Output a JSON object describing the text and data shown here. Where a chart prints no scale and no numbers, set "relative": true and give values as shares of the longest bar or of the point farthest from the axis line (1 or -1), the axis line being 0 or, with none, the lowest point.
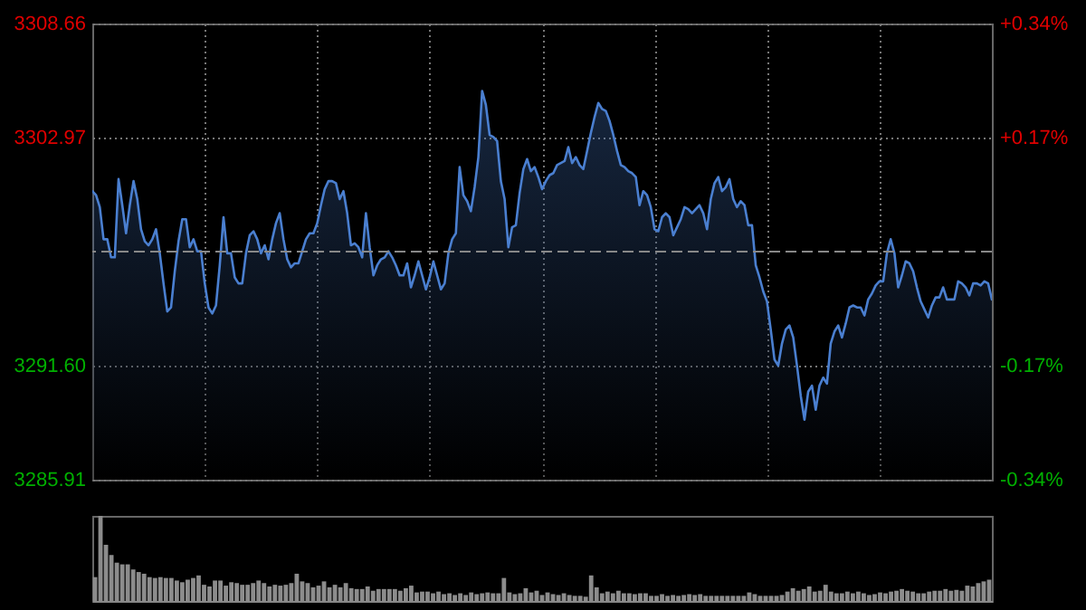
{
  "chart_data": [
    {
      "type": "area",
      "categories": [
        null,
        null,
        null,
        null,
        null,
        null,
        null,
        null,
        null,
        null,
        null,
        null,
        null,
        null,
        null,
        null,
        null,
        null,
        null,
        null,
        null,
        null,
        null,
        null,
        null,
        null,
        null,
        null,
        null,
        null,
        null,
        null,
        null,
        null,
        null,
        null,
        null,
        null,
        null,
        null,
        null,
        null,
        null,
        null,
        null,
        null,
        null,
        null,
        null,
        null,
        null,
        null,
        null,
        null,
        null,
        null,
        null,
        null,
        null,
        null,
        null,
        null,
        null,
        null,
        null,
        null,
        null,
        null,
        null,
        null,
        null,
        null,
        null,
        null,
        null,
        null,
        null,
        null,
        null,
        null,
        null,
        null,
        null,
        null,
        null,
        null,
        null,
        null,
        null,
        null,
        null,
        null,
        null,
        null,
        null,
        null,
        null,
        null,
        null,
        null,
        null,
        null,
        null,
        null,
        null,
        null,
        null,
        null,
        null,
        null,
        null,
        null,
        null,
        null,
        null,
        null,
        null,
        null,
        null,
        null,
        null,
        null,
        null,
        null,
        null,
        null,
        null,
        null,
        null,
        null,
        null,
        null,
        null,
        null,
        null,
        null,
        null,
        null,
        null,
        null,
        null,
        null,
        null,
        null,
        null,
        null,
        null,
        null,
        null,
        null,
        null,
        null,
        null,
        null,
        null,
        null,
        null,
        null,
        null,
        null,
        null,
        null,
        null,
        null,
        null,
        null,
        null,
        null,
        null,
        null,
        null,
        null,
        null,
        null,
        null,
        null,
        null,
        null,
        null,
        null,
        null,
        null,
        null,
        null,
        null,
        null,
        null,
        null,
        null,
        null,
        null,
        null,
        null,
        null,
        null,
        null,
        null,
        null,
        null,
        null,
        null,
        null,
        null,
        null,
        null,
        null,
        null,
        null,
        null,
        null,
        null,
        null,
        null,
        null,
        null,
        null,
        null,
        null,
        null,
        null,
        null,
        null,
        null,
        null,
        null,
        null,
        null,
        null,
        null,
        null,
        null,
        null,
        null,
        null,
        null,
        null,
        null,
        null,
        null,
        null,
        null
      ],
      "series": [
        {
          "color": "#4a7fd0",
          "values": [
            3300.3,
            3300.1,
            3299.5,
            3297.9,
            3297.9,
            3297.0,
            3297.0,
            3300.9,
            3299.6,
            3298.2,
            3299.6,
            3300.8,
            3299.9,
            3298.4,
            3297.8,
            3297.6,
            3297.9,
            3298.4,
            3297.2,
            3295.7,
            3294.3,
            3294.5,
            3296.3,
            3297.8,
            3298.9,
            3298.9,
            3297.5,
            3297.9,
            3297.3,
            3297.3,
            3295.7,
            3294.5,
            3294.2,
            3294.6,
            3296.6,
            3299.0,
            3297.2,
            3297.2,
            3296.0,
            3295.7,
            3295.7,
            3297.2,
            3298.1,
            3298.3,
            3297.9,
            3297.2,
            3297.6,
            3296.9,
            3297.9,
            3298.7,
            3299.2,
            3297.9,
            3296.9,
            3296.5,
            3296.7,
            3296.7,
            3297.3,
            3297.9,
            3298.2,
            3298.2,
            3298.7,
            3299.6,
            3300.4,
            3300.8,
            3300.8,
            3300.7,
            3299.9,
            3300.3,
            3299.2,
            3297.6,
            3297.7,
            3297.5,
            3297.0,
            3299.2,
            3297.5,
            3296.1,
            3296.6,
            3296.9,
            3297.0,
            3297.3,
            3297.0,
            3296.6,
            3296.1,
            3296.1,
            3296.7,
            3295.5,
            3296.1,
            3296.8,
            3296.1,
            3295.4,
            3296.0,
            3296.8,
            3296.1,
            3295.4,
            3295.7,
            3297.2,
            3297.9,
            3298.2,
            3301.5,
            3300.1,
            3299.8,
            3299.3,
            3300.5,
            3302.0,
            3305.3,
            3304.6,
            3303.1,
            3303.0,
            3302.8,
            3300.8,
            3299.9,
            3297.5,
            3298.5,
            3298.6,
            3300.2,
            3301.4,
            3301.9,
            3301.3,
            3301.5,
            3301.0,
            3300.4,
            3300.8,
            3301.1,
            3301.2,
            3301.6,
            3301.7,
            3301.8,
            3302.5,
            3301.7,
            3302.0,
            3301.6,
            3301.4,
            3302.3,
            3303.2,
            3304.0,
            3304.7,
            3304.4,
            3304.3,
            3303.8,
            3303.1,
            3302.3,
            3301.6,
            3301.5,
            3301.3,
            3301.2,
            3301.0,
            3299.6,
            3300.3,
            3300.1,
            3299.5,
            3298.4,
            3298.3,
            3299.0,
            3299.2,
            3299.0,
            3298.1,
            3298.5,
            3298.9,
            3299.5,
            3299.4,
            3299.2,
            3299.4,
            3299.6,
            3299.2,
            3298.4,
            3299.9,
            3300.7,
            3301.0,
            3300.3,
            3300.5,
            3300.9,
            3299.9,
            3299.5,
            3299.8,
            3299.6,
            3298.6,
            3298.6,
            3296.6,
            3296.0,
            3295.3,
            3294.8,
            3293.4,
            3291.9,
            3291.6,
            3292.7,
            3293.4,
            3293.6,
            3293.0,
            3291.6,
            3290.1,
            3288.9,
            3290.3,
            3290.6,
            3289.4,
            3290.6,
            3291.0,
            3290.7,
            3292.7,
            3293.3,
            3293.6,
            3293.0,
            3293.7,
            3294.5,
            3294.6,
            3294.5,
            3294.5,
            3294.1,
            3294.9,
            3295.2,
            3295.6,
            3295.8,
            3295.8,
            3297.2,
            3297.9,
            3297.2,
            3295.5,
            3296.1,
            3296.8,
            3296.7,
            3296.3,
            3295.5,
            3294.8,
            3294.4,
            3294.0,
            3294.6,
            3295.0,
            3295.0,
            3295.5,
            3294.9,
            3294.9,
            3294.9,
            3295.8,
            3295.7,
            3295.5,
            3295.1,
            3295.7,
            3295.7,
            3295.6,
            3295.8,
            3295.7,
            3294.9
          ]
        }
      ],
      "ylim": [
        3285.91,
        3308.66
      ],
      "yticks": [
        3285.91,
        {
          "value": 3291.6,
          "label": "3291.60"
        },
        3302.97,
        3308.66
      ],
      "y2lim": [
        -0.34,
        0.34
      ],
      "y2ticks": [
        {
          "value": -0.34,
          "label": "-0.34%"
        },
        {
          "value": -0.17,
          "label": "-0.17%"
        },
        {
          "value": 0.17,
          "label": "+0.17%"
        },
        {
          "value": 0.34,
          "label": "+0.34%"
        }
      ],
      "ref_lines": [
        {
          "axis": "y",
          "value": 3297.28,
          "color": "#888888",
          "line_style": "dashed"
        }
      ],
      "grid": true
    },
    {
      "type": "bar",
      "relative": true,
      "categories": [
        null,
        null,
        null,
        null,
        null,
        null,
        null,
        null,
        null,
        null,
        null,
        null,
        null,
        null,
        null,
        null,
        null,
        null,
        null,
        null,
        null,
        null,
        null,
        null,
        null,
        null,
        null,
        null,
        null,
        null,
        null,
        null,
        null,
        null,
        null,
        null,
        null,
        null,
        null,
        null,
        null,
        null,
        null,
        null,
        null,
        null,
        null,
        null,
        null,
        null,
        null,
        null,
        null,
        null,
        null,
        null,
        null,
        null,
        null,
        null,
        null,
        null,
        null,
        null,
        null,
        null,
        null,
        null,
        null,
        null,
        null,
        null,
        null,
        null,
        null,
        null,
        null,
        null,
        null,
        null,
        null,
        null,
        null,
        null,
        null,
        null,
        null,
        null,
        null,
        null,
        null,
        null,
        null,
        null,
        null,
        null,
        null,
        null,
        null,
        null,
        null,
        null,
        null,
        null,
        null,
        null,
        null,
        null,
        null,
        null,
        null,
        null,
        null,
        null,
        null,
        null,
        null,
        null,
        null,
        null,
        null,
        null,
        null,
        null,
        null,
        null,
        null,
        null,
        null,
        null,
        null,
        null,
        null,
        null,
        null,
        null,
        null,
        null,
        null,
        null,
        null,
        null,
        null,
        null,
        null,
        null,
        null,
        null,
        null,
        null,
        null,
        null,
        null,
        null,
        null,
        null,
        null,
        null,
        null,
        null,
        null,
        null,
        null,
        null,
        null
      ],
      "series": [
        {
          "color": "#8c8c8c",
          "values": [
            0.28,
            1.0,
            0.66,
            0.54,
            0.45,
            0.43,
            0.43,
            0.37,
            0.34,
            0.32,
            0.28,
            0.27,
            0.28,
            0.27,
            0.27,
            0.24,
            0.22,
            0.25,
            0.27,
            0.3,
            0.19,
            0.17,
            0.24,
            0.24,
            0.18,
            0.22,
            0.21,
            0.19,
            0.19,
            0.21,
            0.24,
            0.21,
            0.17,
            0.19,
            0.18,
            0.19,
            0.21,
            0.32,
            0.23,
            0.21,
            0.16,
            0.18,
            0.23,
            0.16,
            0.19,
            0.16,
            0.21,
            0.15,
            0.14,
            0.14,
            0.17,
            0.12,
            0.14,
            0.14,
            0.14,
            0.14,
            0.12,
            0.15,
            0.18,
            0.1,
            0.11,
            0.11,
            0.09,
            0.11,
            0.08,
            0.09,
            0.07,
            0.09,
            0.07,
            0.1,
            0.08,
            0.09,
            0.1,
            0.09,
            0.09,
            0.27,
            0.1,
            0.08,
            0.09,
            0.15,
            0.1,
            0.12,
            0.07,
            0.1,
            0.08,
            0.07,
            0.09,
            0.07,
            0.06,
            0.06,
            0.05,
            0.3,
            0.16,
            0.09,
            0.11,
            0.09,
            0.12,
            0.09,
            0.09,
            0.08,
            0.09,
            0.09,
            0.06,
            0.06,
            0.08,
            0.06,
            0.07,
            0.06,
            0.07,
            0.08,
            0.07,
            0.08,
            0.06,
            0.06,
            0.06,
            0.06,
            0.06,
            0.06,
            0.06,
            0.06,
            0.1,
            0.08,
            0.06,
            0.06,
            0.06,
            0.06,
            0.07,
            0.11,
            0.15,
            0.12,
            0.14,
            0.17,
            0.11,
            0.12,
            0.19,
            0.11,
            0.09,
            0.09,
            0.11,
            0.09,
            0.11,
            0.09,
            0.07,
            0.08,
            0.1,
            0.09,
            0.11,
            0.12,
            0.14,
            0.12,
            0.11,
            0.09,
            0.09,
            0.11,
            0.12,
            0.12,
            0.14,
            0.12,
            0.13,
            0.12,
            0.18,
            0.17,
            0.21,
            0.23,
            0.25
          ]
        }
      ]
    }
  ]
}
